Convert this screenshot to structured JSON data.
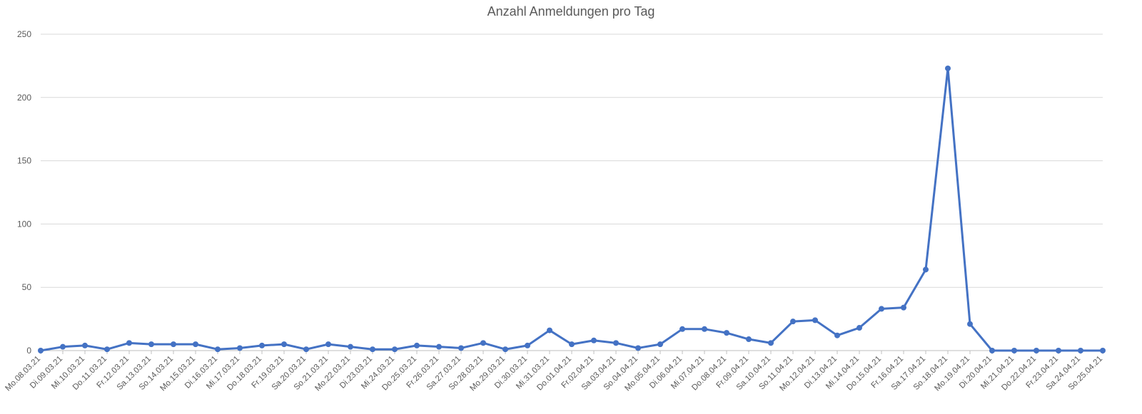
{
  "chart_data": {
    "type": "line",
    "title": "Anzahl Anmeldungen pro Tag",
    "xlabel": "",
    "ylabel": "",
    "ylim": [
      0,
      250
    ],
    "yticks": [
      0,
      50,
      100,
      150,
      200,
      250
    ],
    "grid": true,
    "legend": "none",
    "color": "#4472c4",
    "categories": [
      "Mo.08.03.21",
      "Di.09.03.21",
      "Mi.10.03.21",
      "Do.11.03.21",
      "Fr.12.03.21",
      "Sa.13.03.21",
      "So.14.03.21",
      "Mo.15.03.21",
      "Di.16.03.21",
      "Mi.17.03.21",
      "Do.18.03.21",
      "Fr.19.03.21",
      "Sa.20.03.21",
      "So.21.03.21",
      "Mo.22.03.21",
      "Di.23.03.21",
      "Mi.24.03.21",
      "Do.25.03.21",
      "Fr.26.03.21",
      "Sa.27.03.21",
      "So.28.03.21",
      "Mo.29.03.21",
      "Di.30.03.21",
      "Mi.31.03.21",
      "Do.01.04.21",
      "Fr.02.04.21",
      "Sa.03.04.21",
      "So.04.04.21",
      "Mo.05.04.21",
      "Di.06.04.21",
      "Mi.07.04.21",
      "Do.08.04.21",
      "Fr.09.04.21",
      "Sa.10.04.21",
      "So.11.04.21",
      "Mo.12.04.21",
      "Di.13.04.21",
      "Mi.14.04.21",
      "Do.15.04.21",
      "Fr.16.04.21",
      "Sa.17.04.21",
      "So.18.04.21",
      "Mo.19.04.21",
      "Di.20.04.21",
      "Mi.21.04.21",
      "Do.22.04.21",
      "Fr.23.04.21",
      "Sa.24.04.21",
      "So.25.04.21"
    ],
    "series": [
      {
        "values": [
          0,
          3,
          4,
          1,
          6,
          5,
          5,
          5,
          1,
          2,
          4,
          5,
          1,
          5,
          3,
          1,
          1,
          4,
          3,
          2,
          6,
          1,
          4,
          16,
          5,
          8,
          6,
          2,
          5,
          17,
          17,
          14,
          9,
          6,
          23,
          24,
          12,
          18,
          33,
          34,
          64,
          223,
          21,
          0,
          0,
          0,
          0,
          0,
          0
        ]
      }
    ]
  }
}
